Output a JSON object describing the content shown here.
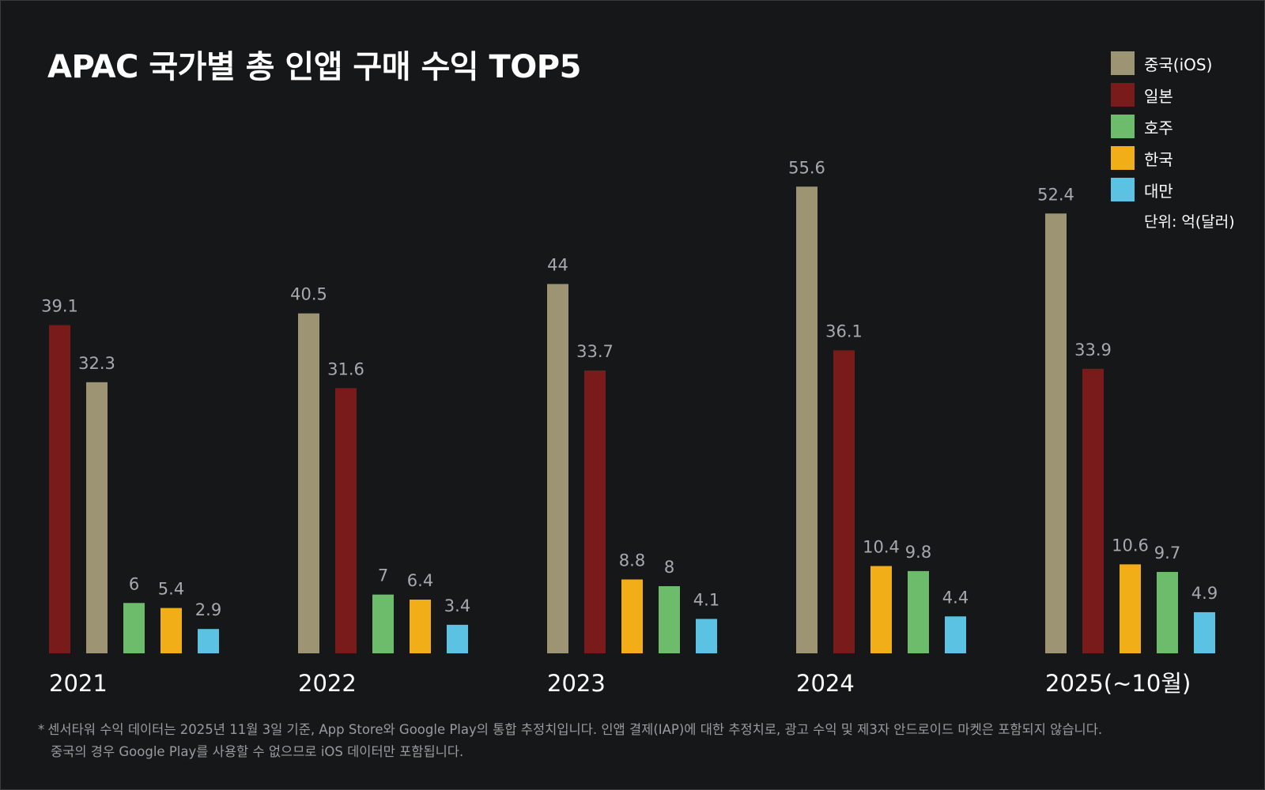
{
  "title": "APAC 국가별 총 인앱 구매 수익 TOP5",
  "legend": {
    "unit": "단위: 억(달러)"
  },
  "footnote": {
    "mark": "*",
    "line1": "센서타워 수익 데이터는 2025년 11월 3일 기준, App Store와 Google Play의 통합 추정치입니다. 인앱 결제(IAP)에 대한 추정치로, 광고 수익 및 제3자 안드로이드 마켓은 포함되지 않습니다.",
    "line2": "중국의 경우 Google Play를 사용할 수 없으므로 iOS 데이터만 포함됩니다."
  },
  "chart_data": {
    "type": "bar",
    "title": "APAC 국가별 총 인앱 구매 수익 TOP5",
    "unit": "단위: 억(달러)",
    "ylim": [
      0,
      60
    ],
    "grid": false,
    "legend_position": "top-right",
    "series": [
      {
        "name": "중국(iOS)",
        "color": "#9c9472"
      },
      {
        "name": "일본",
        "color": "#7a1b1b"
      },
      {
        "name": "호주",
        "color": "#6cbc6c"
      },
      {
        "name": "한국",
        "color": "#f2ae16"
      },
      {
        "name": "대만",
        "color": "#5bc2e4"
      }
    ],
    "groups": [
      {
        "label": "2021",
        "bars": [
          {
            "series": "일본",
            "value": 39.1,
            "label": "39.1"
          },
          {
            "series": "중국(iOS)",
            "value": 32.3,
            "label": "32.3"
          },
          {
            "series": "호주",
            "value": 6,
            "label": "6"
          },
          {
            "series": "한국",
            "value": 5.4,
            "label": "5.4"
          },
          {
            "series": "대만",
            "value": 2.9,
            "label": "2.9"
          }
        ]
      },
      {
        "label": "2022",
        "bars": [
          {
            "series": "중국(iOS)",
            "value": 40.5,
            "label": "40.5"
          },
          {
            "series": "일본",
            "value": 31.6,
            "label": "31.6"
          },
          {
            "series": "호주",
            "value": 7,
            "label": "7"
          },
          {
            "series": "한국",
            "value": 6.4,
            "label": "6.4"
          },
          {
            "series": "대만",
            "value": 3.4,
            "label": "3.4"
          }
        ]
      },
      {
        "label": "2023",
        "bars": [
          {
            "series": "중국(iOS)",
            "value": 44,
            "label": "44"
          },
          {
            "series": "일본",
            "value": 33.7,
            "label": "33.7"
          },
          {
            "series": "한국",
            "value": 8.8,
            "label": "8.8"
          },
          {
            "series": "호주",
            "value": 8,
            "label": "8"
          },
          {
            "series": "대만",
            "value": 4.1,
            "label": "4.1"
          }
        ]
      },
      {
        "label": "2024",
        "bars": [
          {
            "series": "중국(iOS)",
            "value": 55.6,
            "label": "55.6"
          },
          {
            "series": "일본",
            "value": 36.1,
            "label": "36.1"
          },
          {
            "series": "한국",
            "value": 10.4,
            "label": "10.4"
          },
          {
            "series": "호주",
            "value": 9.8,
            "label": "9.8"
          },
          {
            "series": "대만",
            "value": 4.4,
            "label": "4.4"
          }
        ]
      },
      {
        "label": "2025(~10월)",
        "bars": [
          {
            "series": "중국(iOS)",
            "value": 52.4,
            "label": "52.4"
          },
          {
            "series": "일본",
            "value": 33.9,
            "label": "33.9"
          },
          {
            "series": "한국",
            "value": 10.6,
            "label": "10.6"
          },
          {
            "series": "호주",
            "value": 9.7,
            "label": "9.7"
          },
          {
            "series": "대만",
            "value": 4.9,
            "label": "4.9"
          }
        ]
      }
    ]
  }
}
